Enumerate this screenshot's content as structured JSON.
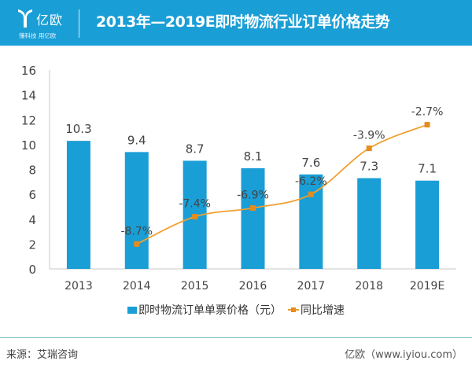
{
  "header": {
    "logo_name": "亿欧",
    "logo_slogan": "懂科技 用亿欧",
    "title": "2013年—2019E即时物流行业订单价格走势"
  },
  "colors": {
    "bar": "#1a9ed6",
    "line": "#f0a030",
    "marker": "#e58c1c",
    "header": "#1a9ed6"
  },
  "chart_data": {
    "type": "bar",
    "title": "2013年—2019E即时物流行业订单价格走势",
    "xlabel": "",
    "ylabel": "",
    "ylim": [
      0,
      16
    ],
    "yticks": [
      0,
      2,
      4,
      6,
      8,
      10,
      12,
      14,
      16
    ],
    "categories": [
      "2013",
      "2014",
      "2015",
      "2016",
      "2017",
      "2018",
      "2019E"
    ],
    "grid": false,
    "legend_position": "bottom",
    "series": [
      {
        "name": "即时物流订单单票价格（元）",
        "type": "bar",
        "values": [
          10.3,
          9.4,
          8.7,
          8.1,
          7.6,
          7.3,
          7.1
        ],
        "labels": [
          "10.3",
          "9.4",
          "8.7",
          "8.1",
          "7.6",
          "7.3",
          "7.1"
        ]
      },
      {
        "name": "同比增速",
        "type": "line",
        "values": [
          null,
          -8.7,
          -7.4,
          -6.9,
          -6.2,
          -3.9,
          -2.7
        ],
        "unit": "%",
        "plotted_on_left_axis_as": [
          null,
          2.0,
          4.2,
          4.9,
          6.0,
          9.7,
          11.6
        ],
        "labels": [
          null,
          "-8.7%",
          "-7.4%",
          "-6.9%",
          "-6.2%",
          "-3.9%",
          "-2.7%"
        ]
      }
    ]
  },
  "legend": {
    "bar_label": "即时物流订单单票价格（元）",
    "line_label": "同比增速"
  },
  "footer": {
    "source": "来源：艾瑞咨询",
    "credit": "亿欧（www.iyiou.com）"
  }
}
